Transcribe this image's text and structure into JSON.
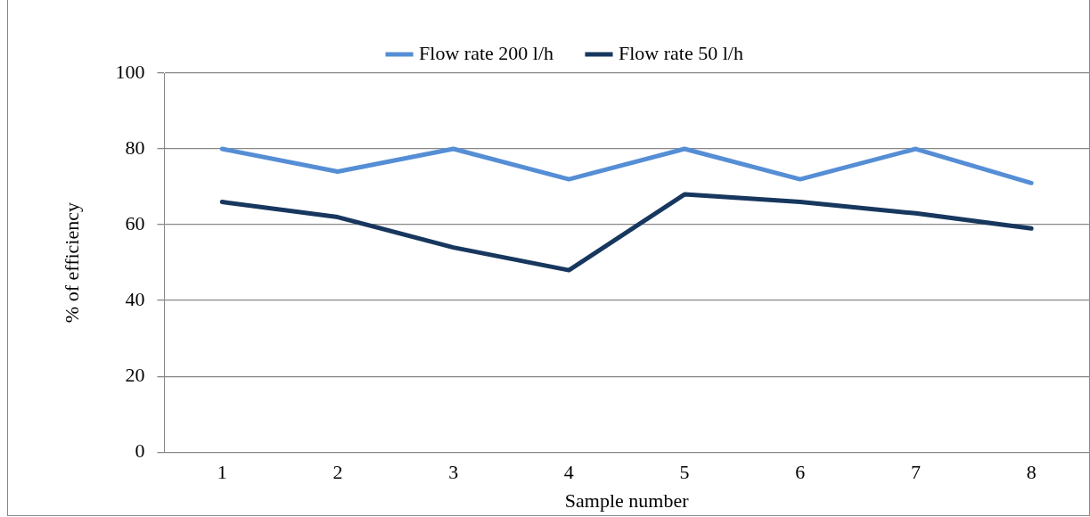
{
  "chart_data": {
    "type": "line",
    "xlabel": "Sample number",
    "ylabel": "% of efficiency",
    "categories": [
      "1",
      "2",
      "3",
      "4",
      "5",
      "6",
      "7",
      "8"
    ],
    "series": [
      {
        "name": "Flow rate 200 l/h",
        "color": "#558ed5",
        "values": [
          80,
          74,
          80,
          72,
          80,
          72,
          80,
          71
        ]
      },
      {
        "name": "Flow rate 50 l/h",
        "color": "#17375e",
        "values": [
          66,
          62,
          54,
          48,
          68,
          66,
          63,
          59
        ]
      }
    ],
    "ylim": [
      0,
      100
    ],
    "yticks": [
      0,
      20,
      40,
      60,
      80,
      100
    ],
    "grid": "y",
    "legend": "top",
    "marker": "none",
    "line_style": "solid"
  }
}
